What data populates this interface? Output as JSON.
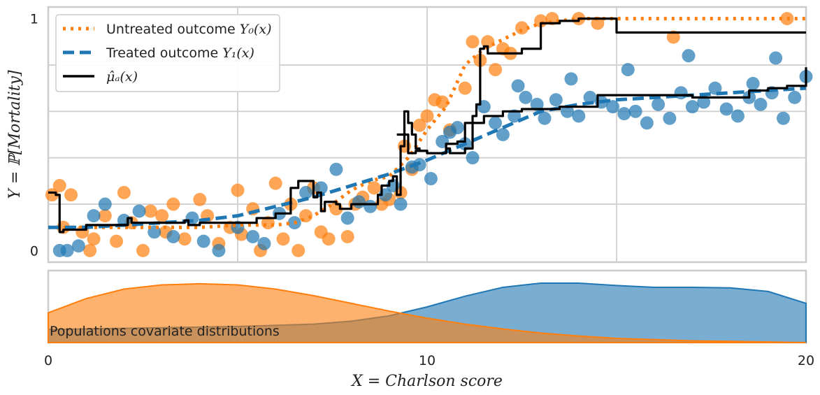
{
  "colors": {
    "untreated": "#ff7f0e",
    "treated": "#1f77b4",
    "estimate": "#000000",
    "grid": "#d0d0d0",
    "frame": "#cccccc"
  },
  "chart_data": [
    {
      "type": "scatter",
      "panel": "main",
      "xlim": [
        0,
        20
      ],
      "ylim": [
        -0.05,
        1.05
      ],
      "ylabel": "Y = ℙ[Mortality]",
      "yticks": [
        "0",
        "1"
      ],
      "grid": true,
      "legend_placement": "top-left",
      "legend": [
        {
          "text": "Untreated outcome ",
          "math": "Y₀(x)",
          "style": "dotted",
          "color": "untreated"
        },
        {
          "text": "Treated outcome ",
          "math": "Y₁(x)",
          "style": "dashed",
          "color": "treated"
        },
        {
          "text": "",
          "math": "μ̂ₐ(x)",
          "style": "solid",
          "color": "estimate"
        }
      ],
      "series": [
        {
          "kind": "curve",
          "color": "untreated",
          "style": "dotted",
          "x": [
            0.0,
            1.0,
            2.0,
            3.0,
            4.0,
            5.0,
            6.0,
            6.5,
            7.0,
            7.5,
            8.0,
            8.5,
            9.0,
            9.5,
            10.0,
            10.5,
            11.0,
            11.5,
            12.0,
            12.5,
            13.0,
            14.0,
            15.0,
            16.0,
            17.0,
            18.0,
            19.0,
            20.0
          ],
          "y": [
            0.1,
            0.1,
            0.1,
            0.1,
            0.1,
            0.11,
            0.11,
            0.12,
            0.15,
            0.2,
            0.26,
            0.3,
            0.32,
            0.4,
            0.52,
            0.62,
            0.8,
            0.87,
            0.91,
            0.95,
            0.98,
            1.0,
            1.0,
            1.0,
            1.0,
            1.0,
            1.0,
            1.0
          ]
        },
        {
          "kind": "curve",
          "color": "treated",
          "style": "dashed",
          "x": [
            0.0,
            1.0,
            2.0,
            3.0,
            4.0,
            5.0,
            6.0,
            7.0,
            8.0,
            9.0,
            10.0,
            11.0,
            12.0,
            13.0,
            14.0,
            15.0,
            16.0,
            17.0,
            18.0,
            19.0,
            20.0
          ],
          "y": [
            0.1,
            0.1,
            0.11,
            0.12,
            0.13,
            0.15,
            0.19,
            0.23,
            0.28,
            0.33,
            0.39,
            0.46,
            0.53,
            0.6,
            0.63,
            0.65,
            0.66,
            0.67,
            0.68,
            0.69,
            0.7
          ]
        },
        {
          "kind": "step",
          "color": "estimate",
          "style": "solid",
          "x": [
            0.0,
            0.2,
            0.3,
            0.4,
            0.8,
            1.0,
            2.0,
            2.1,
            2.2,
            3.5,
            3.6,
            3.7,
            4.0,
            4.5,
            5.0,
            5.5,
            6.0,
            6.4,
            6.6,
            7.0,
            7.1,
            7.2,
            7.3,
            7.4,
            7.6,
            7.7,
            8.0,
            8.5,
            8.7,
            8.8,
            9.0,
            9.1,
            9.2,
            9.3,
            9.4,
            9.5,
            9.6,
            9.7,
            9.8,
            10.0,
            10.5,
            10.6,
            11.0,
            11.2,
            11.3,
            11.4,
            11.5,
            11.6,
            12.0,
            12.5,
            13.0,
            13.5,
            14.0,
            14.5,
            15.0,
            19.0,
            19.5,
            20.0
          ],
          "y": [
            0.25,
            0.24,
            0.08,
            0.09,
            0.09,
            0.11,
            0.11,
            0.14,
            0.12,
            0.12,
            0.13,
            0.11,
            0.12,
            0.12,
            0.12,
            0.14,
            0.16,
            0.27,
            0.3,
            0.23,
            0.25,
            0.17,
            0.21,
            0.21,
            0.2,
            0.18,
            0.2,
            0.2,
            0.24,
            0.28,
            0.3,
            0.32,
            0.24,
            0.45,
            0.6,
            0.55,
            0.5,
            0.44,
            0.43,
            0.42,
            0.44,
            0.42,
            0.44,
            0.58,
            0.63,
            0.87,
            0.88,
            0.85,
            0.85,
            0.87,
            0.98,
            0.99,
            1.0,
            1.0,
            0.94,
            0.94,
            0.94,
            0.94
          ]
        },
        {
          "kind": "step",
          "color": "estimate",
          "style": "solid",
          "x": [
            9.2,
            9.5,
            9.7,
            10.0,
            10.5,
            10.8,
            11.0,
            11.5,
            12.0,
            12.5,
            13.0,
            13.5,
            14.0,
            14.5,
            15.0,
            16.0,
            17.0,
            18.0,
            18.5,
            19.0,
            19.5,
            20.0
          ],
          "y": [
            0.5,
            0.42,
            0.43,
            0.42,
            0.46,
            0.47,
            0.55,
            0.58,
            0.6,
            0.61,
            0.61,
            0.62,
            0.62,
            0.67,
            0.67,
            0.67,
            0.66,
            0.66,
            0.69,
            0.7,
            0.71,
            0.79
          ]
        },
        {
          "kind": "points",
          "color": "untreated",
          "points": [
            [
              0.1,
              0.24
            ],
            [
              0.3,
              0.28
            ],
            [
              0.4,
              0.1
            ],
            [
              0.6,
              0.24
            ],
            [
              0.9,
              0.08
            ],
            [
              1.1,
              0.0
            ],
            [
              1.2,
              0.05
            ],
            [
              1.5,
              0.15
            ],
            [
              1.8,
              0.04
            ],
            [
              2.0,
              0.25
            ],
            [
              2.2,
              0.12
            ],
            [
              2.5,
              0.0
            ],
            [
              2.7,
              0.17
            ],
            [
              3.0,
              0.15
            ],
            [
              3.1,
              0.08
            ],
            [
              3.3,
              0.2
            ],
            [
              3.6,
              0.05
            ],
            [
              4.0,
              0.22
            ],
            [
              4.2,
              0.15
            ],
            [
              4.5,
              0.03
            ],
            [
              4.8,
              0.1
            ],
            [
              5.0,
              0.26
            ],
            [
              5.1,
              0.07
            ],
            [
              5.4,
              0.18
            ],
            [
              5.6,
              0.0
            ],
            [
              5.8,
              0.12
            ],
            [
              6.0,
              0.29
            ],
            [
              6.2,
              0.05
            ],
            [
              6.4,
              0.2
            ],
            [
              6.6,
              0.0
            ],
            [
              6.8,
              0.15
            ],
            [
              7.0,
              0.27
            ],
            [
              7.2,
              0.08
            ],
            [
              7.4,
              0.05
            ],
            [
              7.6,
              0.18
            ],
            [
              7.9,
              0.06
            ],
            [
              8.1,
              0.2
            ],
            [
              8.3,
              0.23
            ],
            [
              8.6,
              0.27
            ],
            [
              8.8,
              0.2
            ],
            [
              9.0,
              0.22
            ],
            [
              9.3,
              0.25
            ],
            [
              9.4,
              0.45
            ],
            [
              9.6,
              0.35
            ],
            [
              9.8,
              0.54
            ],
            [
              10.0,
              0.58
            ],
            [
              10.2,
              0.65
            ],
            [
              10.4,
              0.64
            ],
            [
              10.6,
              0.52
            ],
            [
              11.0,
              0.7
            ],
            [
              11.2,
              0.9
            ],
            [
              11.4,
              0.82
            ],
            [
              11.6,
              0.9
            ],
            [
              11.8,
              0.78
            ],
            [
              12.0,
              0.87
            ],
            [
              12.2,
              0.85
            ],
            [
              12.5,
              0.96
            ],
            [
              13.0,
              0.99
            ],
            [
              13.3,
              1.0
            ],
            [
              14.0,
              1.0
            ],
            [
              14.5,
              0.98
            ],
            [
              16.5,
              0.92
            ],
            [
              19.5,
              1.0
            ]
          ]
        },
        {
          "kind": "points",
          "color": "treated",
          "points": [
            [
              0.3,
              0.0
            ],
            [
              0.5,
              0.0
            ],
            [
              0.8,
              0.02
            ],
            [
              1.2,
              0.15
            ],
            [
              1.5,
              0.2
            ],
            [
              2.0,
              0.13
            ],
            [
              2.4,
              0.17
            ],
            [
              2.8,
              0.08
            ],
            [
              3.3,
              0.06
            ],
            [
              3.8,
              0.14
            ],
            [
              4.1,
              0.04
            ],
            [
              4.5,
              0.0
            ],
            [
              5.0,
              0.1
            ],
            [
              5.4,
              0.06
            ],
            [
              5.7,
              0.03
            ],
            [
              6.1,
              0.16
            ],
            [
              6.5,
              0.12
            ],
            [
              6.8,
              0.25
            ],
            [
              7.2,
              0.27
            ],
            [
              7.6,
              0.35
            ],
            [
              7.9,
              0.14
            ],
            [
              8.2,
              0.21
            ],
            [
              8.5,
              0.19
            ],
            [
              8.9,
              0.24
            ],
            [
              9.1,
              0.28
            ],
            [
              9.3,
              0.2
            ],
            [
              9.6,
              0.36
            ],
            [
              9.8,
              0.37
            ],
            [
              10.1,
              0.31
            ],
            [
              10.4,
              0.47
            ],
            [
              10.6,
              0.51
            ],
            [
              10.8,
              0.53
            ],
            [
              11.0,
              0.46
            ],
            [
              11.2,
              0.4
            ],
            [
              11.5,
              0.62
            ],
            [
              11.8,
              0.55
            ],
            [
              12.0,
              0.5
            ],
            [
              12.3,
              0.58
            ],
            [
              12.6,
              0.66
            ],
            [
              12.9,
              0.63
            ],
            [
              13.1,
              0.57
            ],
            [
              13.4,
              0.65
            ],
            [
              13.7,
              0.6
            ],
            [
              14.0,
              0.58
            ],
            [
              14.3,
              0.66
            ],
            [
              14.6,
              0.64
            ],
            [
              14.9,
              0.62
            ],
            [
              15.2,
              0.59
            ],
            [
              15.5,
              0.6
            ],
            [
              15.8,
              0.55
            ],
            [
              16.1,
              0.63
            ],
            [
              16.4,
              0.57
            ],
            [
              16.7,
              0.68
            ],
            [
              17.0,
              0.62
            ],
            [
              17.3,
              0.64
            ],
            [
              17.6,
              0.7
            ],
            [
              17.9,
              0.61
            ],
            [
              18.2,
              0.58
            ],
            [
              18.5,
              0.66
            ],
            [
              18.8,
              0.63
            ],
            [
              19.1,
              0.68
            ],
            [
              19.4,
              0.57
            ],
            [
              19.7,
              0.66
            ],
            [
              20.0,
              0.75
            ],
            [
              19.2,
              0.83
            ],
            [
              18.6,
              0.72
            ],
            [
              16.9,
              0.84
            ],
            [
              15.3,
              0.78
            ],
            [
              13.8,
              0.74
            ],
            [
              12.4,
              0.71
            ]
          ]
        }
      ]
    },
    {
      "type": "area",
      "panel": "density",
      "xlim": [
        0,
        20
      ],
      "xlabel": "X = Charlson score",
      "xticks": [
        "0",
        "10",
        "20"
      ],
      "annotation": "Populations covariate distributions",
      "series": [
        {
          "color": "untreated",
          "x": [
            0,
            1,
            2,
            3,
            4,
            5,
            6,
            7,
            8,
            9,
            10,
            11,
            12,
            13,
            14,
            15,
            16,
            17,
            18,
            19,
            20
          ],
          "y": [
            0.5,
            0.74,
            0.9,
            0.97,
            0.99,
            0.97,
            0.9,
            0.79,
            0.66,
            0.53,
            0.41,
            0.31,
            0.23,
            0.16,
            0.11,
            0.07,
            0.05,
            0.03,
            0.02,
            0.01,
            0.0
          ]
        },
        {
          "color": "treated",
          "x": [
            0,
            1,
            2,
            3,
            4,
            5,
            6,
            7,
            8,
            9,
            10,
            11,
            12,
            13,
            14,
            15,
            16,
            17,
            18,
            19,
            20
          ],
          "y": [
            0.22,
            0.23,
            0.24,
            0.25,
            0.26,
            0.27,
            0.29,
            0.31,
            0.36,
            0.45,
            0.6,
            0.78,
            0.93,
            1.0,
            1.0,
            0.96,
            0.93,
            0.93,
            0.92,
            0.86,
            0.66
          ]
        }
      ]
    }
  ]
}
